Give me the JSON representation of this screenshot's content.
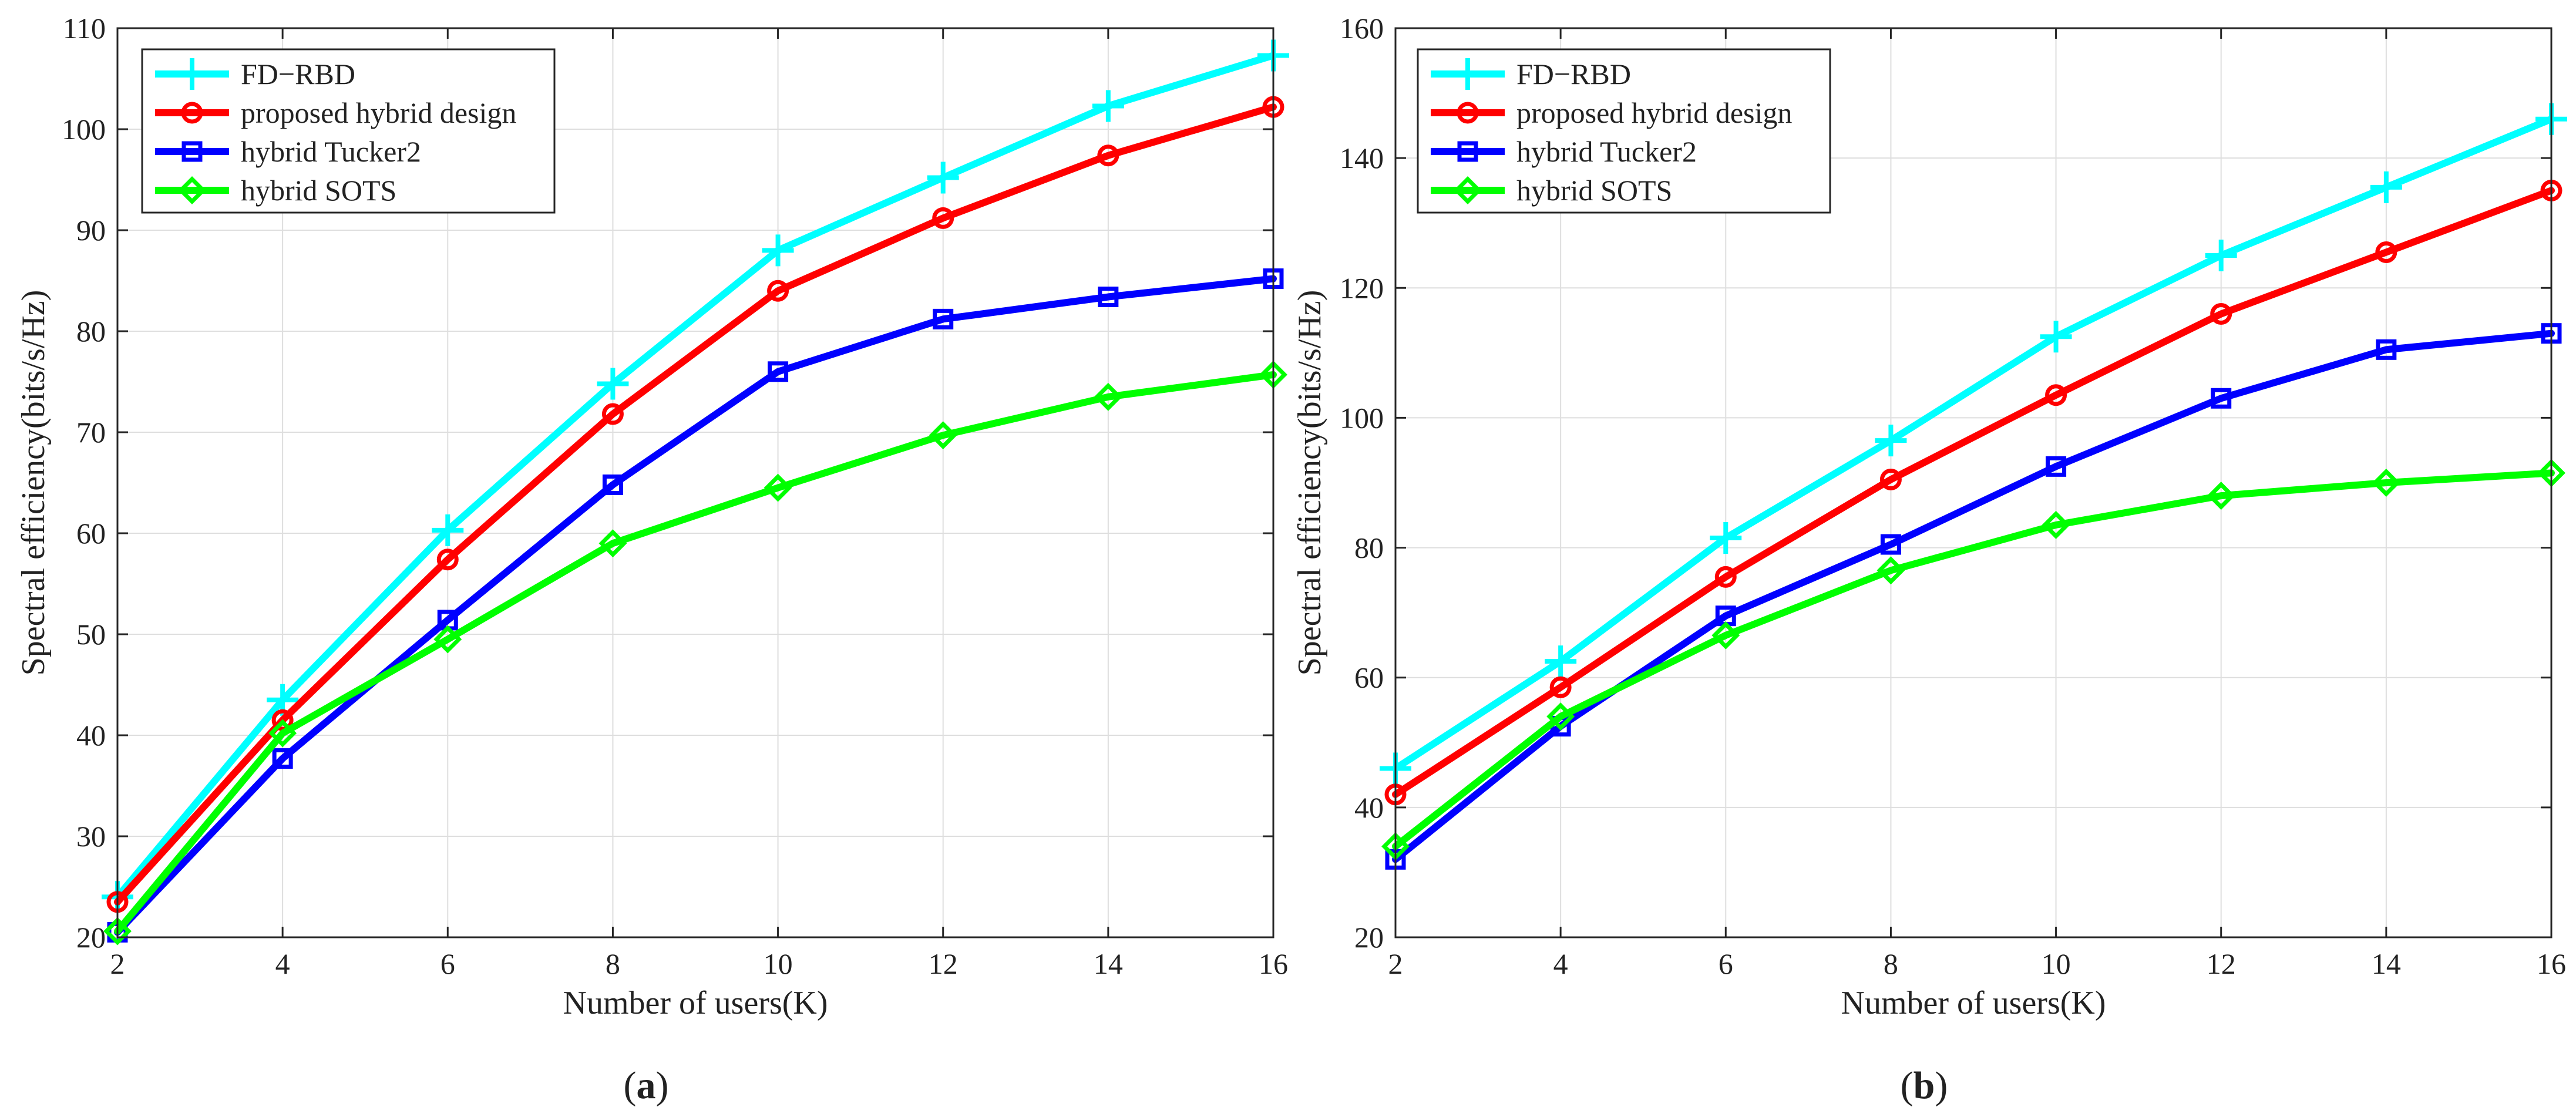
{
  "charts": [
    {
      "type": "line",
      "caption": "(a)",
      "caption_letter": "a",
      "title": "",
      "xlabel": "Number of users(K)",
      "ylabel": "Spectral efficiency(bits/s/Hz)",
      "x": [
        2,
        4,
        6,
        8,
        10,
        12,
        14,
        16
      ],
      "xlim": [
        2,
        16
      ],
      "ylim": [
        20,
        110
      ],
      "xticks": [
        2,
        4,
        6,
        8,
        10,
        12,
        14,
        16
      ],
      "yticks": [
        20,
        30,
        40,
        50,
        60,
        70,
        80,
        90,
        100,
        110
      ],
      "grid": true,
      "legend_position": "top-left",
      "series": [
        {
          "name": "FD−RBD",
          "color": "#00FFFF",
          "marker": "plus",
          "values": [
            24,
            43.5,
            60.3,
            74.8,
            88,
            95.2,
            102.3,
            107.3
          ]
        },
        {
          "name": "proposed hybrid design",
          "color": "#FF0000",
          "marker": "circle",
          "values": [
            23.5,
            41.5,
            57.4,
            71.8,
            84,
            91.2,
            97.4,
            102.2
          ]
        },
        {
          "name": "hybrid Tucker2",
          "color": "#0000FF",
          "marker": "square",
          "values": [
            20.5,
            37.7,
            51.4,
            64.8,
            76,
            81.2,
            83.4,
            85.2
          ]
        },
        {
          "name": "hybrid SOTS",
          "color": "#00FF00",
          "marker": "diamond",
          "values": [
            20.6,
            40.2,
            49.5,
            59,
            64.5,
            69.7,
            73.5,
            75.7
          ]
        }
      ]
    },
    {
      "type": "line",
      "caption": "(b)",
      "caption_letter": "b",
      "title": "",
      "xlabel": "Number of users(K)",
      "ylabel": "Spectral efficiency(bits/s/Hz)",
      "x": [
        2,
        4,
        6,
        8,
        10,
        12,
        14,
        16
      ],
      "xlim": [
        2,
        16
      ],
      "ylim": [
        20,
        160
      ],
      "xticks": [
        2,
        4,
        6,
        8,
        10,
        12,
        14,
        16
      ],
      "yticks": [
        20,
        40,
        60,
        80,
        100,
        120,
        140,
        160
      ],
      "grid": true,
      "legend_position": "top-left",
      "series": [
        {
          "name": "FD−RBD",
          "color": "#00FFFF",
          "marker": "plus",
          "values": [
            46,
            62.5,
            81.5,
            96.5,
            112.5,
            125,
            135.5,
            146
          ]
        },
        {
          "name": "proposed hybrid design",
          "color": "#FF0000",
          "marker": "circle",
          "values": [
            42,
            58.5,
            75.5,
            90.5,
            103.5,
            116,
            125.5,
            135
          ]
        },
        {
          "name": "hybrid Tucker2",
          "color": "#0000FF",
          "marker": "square",
          "values": [
            32,
            52.5,
            69.5,
            80.5,
            92.5,
            103,
            110.5,
            113
          ]
        },
        {
          "name": "hybrid SOTS",
          "color": "#00FF00",
          "marker": "diamond",
          "values": [
            34,
            54,
            66.5,
            76.5,
            83.5,
            88,
            90,
            91.5
          ]
        }
      ]
    }
  ]
}
